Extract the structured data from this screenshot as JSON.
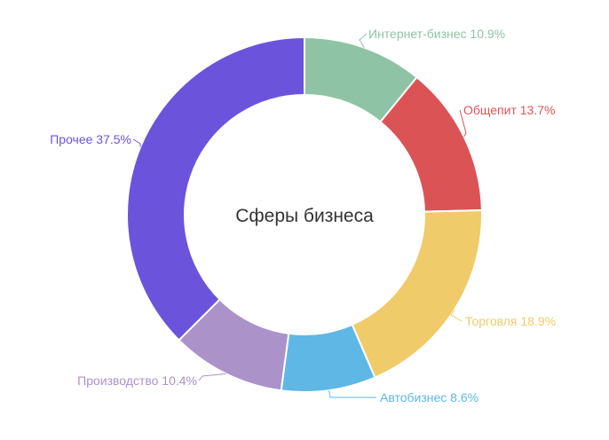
{
  "chart_data": {
    "type": "pie",
    "variant": "donut",
    "title": "Сферы бизнеса",
    "slices": [
      {
        "label": "Интернет-бизнес",
        "value": 10.9,
        "text": "Интернет-бизнес 10.9%",
        "color": "#8fc3a6"
      },
      {
        "label": "Общепит",
        "value": 13.7,
        "text": "Общепит 13.7%",
        "color": "#dc5356"
      },
      {
        "label": "Торговля",
        "value": 18.9,
        "text": "Торговля 18.9%",
        "color": "#f0cb69"
      },
      {
        "label": "Автобизнес",
        "value": 8.6,
        "text": "Автобизнес 8.6%",
        "color": "#5fb7e5"
      },
      {
        "label": "Производство",
        "value": 10.4,
        "text": "Производство 10.4%",
        "color": "#ab92c9"
      },
      {
        "label": "Прочее",
        "value": 37.5,
        "text": "Прочее 37.5%",
        "color": "#6c53dc"
      }
    ],
    "legend": "none"
  }
}
